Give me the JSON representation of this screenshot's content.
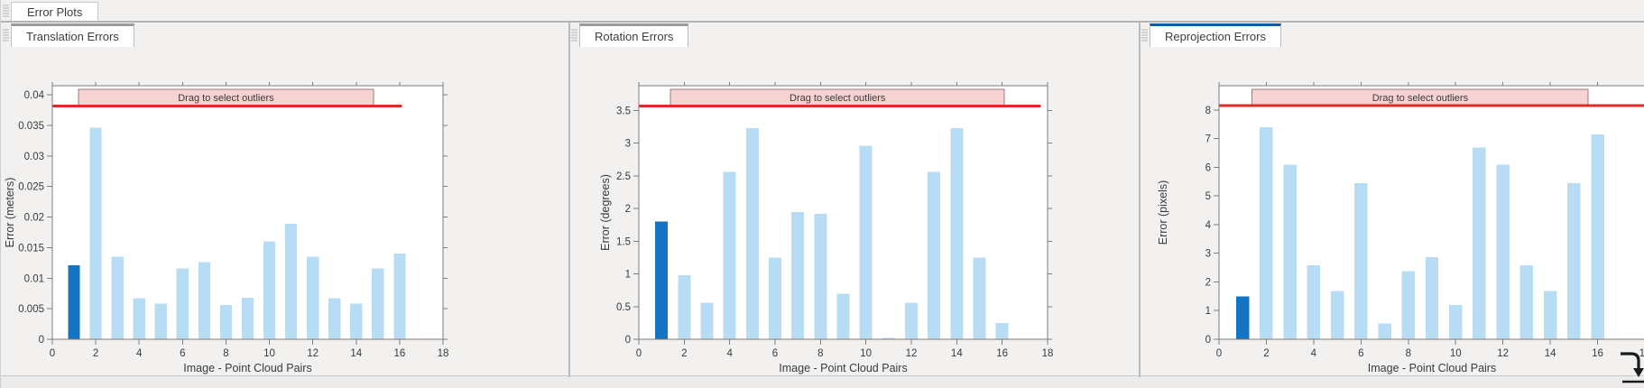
{
  "window": {
    "document_tab": "Error Plots"
  },
  "panels": [
    {
      "tab": "Translation Errors",
      "accent": "#9a9a9a"
    },
    {
      "tab": "Rotation Errors",
      "accent": "#9a9a9a"
    },
    {
      "tab": "Reprojection Errors",
      "accent": "#115d9e"
    }
  ],
  "chart_data": [
    {
      "type": "bar",
      "title": "Translation Errors",
      "x": [
        1,
        2,
        3,
        4,
        5,
        6,
        7,
        8,
        9,
        10,
        11,
        12,
        13,
        14,
        15,
        16
      ],
      "values": [
        0.0121,
        0.0346,
        0.0135,
        0.0067,
        0.0058,
        0.0116,
        0.0126,
        0.0056,
        0.0068,
        0.016,
        0.0189,
        0.0135,
        0.0067,
        0.0058,
        0.0116,
        0.014
      ],
      "highlight_x": 1,
      "bar_color": "#b9dcf5",
      "highlight_color": "#1474c4",
      "xlabel": "Image - Point Cloud Pairs",
      "ylabel": "Error (meters)",
      "xlim": [
        0,
        18
      ],
      "ylim": [
        0,
        0.0415
      ],
      "xticks": [
        0,
        2,
        4,
        6,
        8,
        10,
        12,
        14,
        16,
        18
      ],
      "xtick_labels": [
        "0",
        "2",
        "4",
        "6",
        "8",
        "10",
        "12",
        "14",
        "16",
        "18"
      ],
      "yticks": [
        0,
        0.005,
        0.01,
        0.015,
        0.02,
        0.025,
        0.03,
        0.035,
        0.04
      ],
      "ytick_labels": [
        "0",
        "0.005",
        "0.01",
        "0.015",
        "0.02",
        "0.025",
        "0.03",
        "0.035",
        "0.04"
      ],
      "grid": false,
      "legend": null,
      "threshold": {
        "value": 0.0382,
        "color": "#dd2c23",
        "x_start": 0,
        "x_end": 16.1
      },
      "band": {
        "label": "Drag to select outliers",
        "x_start": 1.2,
        "x_end": 14.8,
        "fill": "#f6d3d2",
        "border": "#9c7b79",
        "text_color": "#503e3d"
      }
    },
    {
      "type": "bar",
      "title": "Rotation Errors",
      "x": [
        1,
        2,
        3,
        4,
        5,
        6,
        7,
        8,
        9,
        10,
        11,
        12,
        13,
        14,
        15,
        16
      ],
      "values": [
        1.8,
        0.98,
        0.56,
        2.56,
        3.23,
        1.25,
        1.95,
        1.92,
        0.7,
        2.96,
        0.02,
        0.56,
        2.56,
        3.23,
        1.25,
        0.25
      ],
      "highlight_x": 1,
      "bar_color": "#b9dcf5",
      "highlight_color": "#1474c4",
      "xlabel": "Image - Point Cloud Pairs",
      "ylabel": "Error (degrees)",
      "xlim": [
        0,
        18
      ],
      "ylim": [
        0,
        3.88
      ],
      "xticks": [
        0,
        2,
        4,
        6,
        8,
        10,
        12,
        14,
        16,
        18
      ],
      "xtick_labels": [
        "0",
        "2",
        "4",
        "6",
        "8",
        "10",
        "12",
        "14",
        "16",
        "18"
      ],
      "yticks": [
        0,
        0.5,
        1,
        1.5,
        2,
        2.5,
        3,
        3.5
      ],
      "ytick_labels": [
        "0",
        "0.5",
        "1",
        "1.5",
        "2",
        "2.5",
        "3",
        "3.5"
      ],
      "grid": false,
      "legend": null,
      "threshold": {
        "value": 3.57,
        "color": "#dd2c23",
        "x_start": 0,
        "x_end": 17.7
      },
      "band": {
        "label": "Drag to select outliers",
        "x_start": 1.4,
        "x_end": 16.1,
        "fill": "#f6d3d2",
        "border": "#9c7b79",
        "text_color": "#503e3d"
      }
    },
    {
      "type": "bar",
      "title": "Reprojection Errors",
      "x": [
        1,
        2,
        3,
        4,
        5,
        6,
        7,
        8,
        9,
        10,
        11,
        12,
        13,
        14,
        15,
        16
      ],
      "values": [
        1.5,
        7.4,
        6.1,
        2.58,
        1.68,
        5.45,
        0.55,
        2.37,
        2.87,
        1.2,
        6.7,
        6.1,
        2.58,
        1.68,
        5.45,
        7.15
      ],
      "highlight_x": 1,
      "bar_color": "#b9dcf5",
      "highlight_color": "#1474c4",
      "xlabel": "Image - Point Cloud Pairs",
      "ylabel": "Error (pixels)",
      "xlim": [
        0,
        18
      ],
      "ylim": [
        0,
        8.85
      ],
      "xticks": [
        0,
        2,
        4,
        6,
        8,
        10,
        12,
        14,
        16,
        18
      ],
      "xtick_labels": [
        "0",
        "2",
        "4",
        "6",
        "8",
        "10",
        "12",
        "14",
        "16",
        "18"
      ],
      "yticks": [
        0,
        1,
        2,
        3,
        4,
        5,
        6,
        7,
        8
      ],
      "ytick_labels": [
        "0",
        "1",
        "2",
        "3",
        "4",
        "5",
        "6",
        "7",
        "8"
      ],
      "grid": false,
      "legend": null,
      "threshold": {
        "value": 8.15,
        "color": "#dd2c23",
        "x_start": 0,
        "x_end": 18.3
      },
      "band": {
        "label": "Drag to select outliers",
        "x_start": 1.4,
        "x_end": 15.6,
        "fill": "#f6d3d2",
        "border": "#9c7b79",
        "text_color": "#503e3d"
      }
    }
  ]
}
